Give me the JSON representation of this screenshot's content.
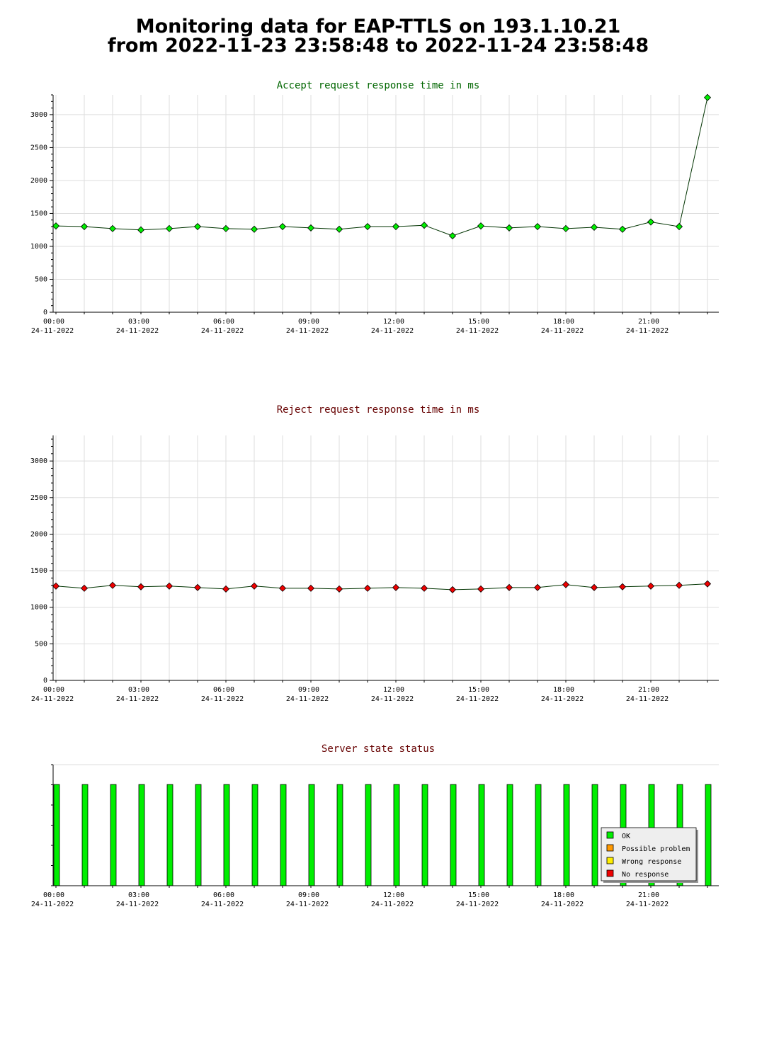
{
  "title": {
    "line1": "Monitoring data for EAP-TTLS on 193.1.10.21",
    "line2": "from 2022-11-23 23:58:48 to 2022-11-24 23:58:48"
  },
  "colors": {
    "accept_title": "#006600",
    "reject_title": "#660000",
    "status_title": "#660000",
    "ok": "#00ee00",
    "possible_problem": "#ff9900",
    "wrong_response": "#ffee00",
    "no_response": "#ee0000",
    "grid": "#dddddd"
  },
  "chart_data": [
    {
      "type": "line",
      "title": "Accept request response time in ms",
      "ylim": [
        0,
        3300
      ],
      "yticks": [
        0,
        500,
        1000,
        1500,
        2000,
        2500,
        3000
      ],
      "xlim": [
        0,
        23.5
      ],
      "xticks": [
        {
          "time": "00:00",
          "date": "24-11-2022"
        },
        {
          "time": "03:00",
          "date": "24-11-2022"
        },
        {
          "time": "06:00",
          "date": "24-11-2022"
        },
        {
          "time": "09:00",
          "date": "24-11-2022"
        },
        {
          "time": "12:00",
          "date": "24-11-2022"
        },
        {
          "time": "15:00",
          "date": "24-11-2022"
        },
        {
          "time": "18:00",
          "date": "24-11-2022"
        },
        {
          "time": "21:00",
          "date": "24-11-2022"
        }
      ],
      "grid": true,
      "series": [
        {
          "color": "#00ee00",
          "x": [
            0,
            1,
            2,
            3,
            4,
            5,
            6,
            7,
            8,
            9,
            10,
            11,
            12,
            13,
            14,
            15,
            16,
            17,
            18,
            19,
            20,
            21,
            22,
            23
          ],
          "values": [
            1310,
            1300,
            1270,
            1250,
            1270,
            1300,
            1270,
            1260,
            1300,
            1280,
            1260,
            1300,
            1300,
            1320,
            1160,
            1310,
            1280,
            1300,
            1270,
            1290,
            1260,
            1370,
            1300,
            3260
          ]
        }
      ]
    },
    {
      "type": "line",
      "title": "Reject request response time in ms",
      "ylim": [
        0,
        3350
      ],
      "yticks": [
        0,
        500,
        1000,
        1500,
        2000,
        2500,
        3000
      ],
      "xlim": [
        0,
        23.5
      ],
      "xticks": [
        {
          "time": "00:00",
          "date": "24-11-2022"
        },
        {
          "time": "03:00",
          "date": "24-11-2022"
        },
        {
          "time": "06:00",
          "date": "24-11-2022"
        },
        {
          "time": "09:00",
          "date": "24-11-2022"
        },
        {
          "time": "12:00",
          "date": "24-11-2022"
        },
        {
          "time": "15:00",
          "date": "24-11-2022"
        },
        {
          "time": "18:00",
          "date": "24-11-2022"
        },
        {
          "time": "21:00",
          "date": "24-11-2022"
        }
      ],
      "grid": true,
      "series": [
        {
          "color": "#ee0000",
          "x": [
            0,
            1,
            2,
            3,
            4,
            5,
            6,
            7,
            8,
            9,
            10,
            11,
            12,
            13,
            14,
            15,
            16,
            17,
            18,
            19,
            20,
            21,
            22,
            23
          ],
          "values": [
            1290,
            1260,
            1300,
            1280,
            1290,
            1270,
            1250,
            1290,
            1260,
            1260,
            1250,
            1260,
            1270,
            1260,
            1240,
            1250,
            1270,
            1270,
            1310,
            1270,
            1280,
            1290,
            1300,
            1320
          ]
        }
      ]
    },
    {
      "type": "bar",
      "title": "Server state status",
      "xlim": [
        0,
        23.5
      ],
      "xticks": [
        {
          "time": "00:00",
          "date": "24-11-2022"
        },
        {
          "time": "03:00",
          "date": "24-11-2022"
        },
        {
          "time": "06:00",
          "date": "24-11-2022"
        },
        {
          "time": "09:00",
          "date": "24-11-2022"
        },
        {
          "time": "12:00",
          "date": "24-11-2022"
        },
        {
          "time": "15:00",
          "date": "24-11-2022"
        },
        {
          "time": "18:00",
          "date": "24-11-2022"
        },
        {
          "time": "21:00",
          "date": "24-11-2022"
        }
      ],
      "x": [
        0,
        1,
        2,
        3,
        4,
        5,
        6,
        7,
        8,
        9,
        10,
        11,
        12,
        13,
        14,
        15,
        16,
        17,
        18,
        19,
        20,
        21,
        22,
        23
      ],
      "states": [
        "OK",
        "OK",
        "OK",
        "OK",
        "OK",
        "OK",
        "OK",
        "OK",
        "OK",
        "OK",
        "OK",
        "OK",
        "OK",
        "OK",
        "OK",
        "OK",
        "OK",
        "OK",
        "OK",
        "OK",
        "OK",
        "OK",
        "OK",
        "OK"
      ],
      "legend_position": "bottom-right",
      "legend": [
        {
          "label": "OK",
          "color": "#00ee00"
        },
        {
          "label": "Possible problem",
          "color": "#ff9900"
        },
        {
          "label": "Wrong response",
          "color": "#ffee00"
        },
        {
          "label": "No response",
          "color": "#ee0000"
        }
      ]
    }
  ]
}
